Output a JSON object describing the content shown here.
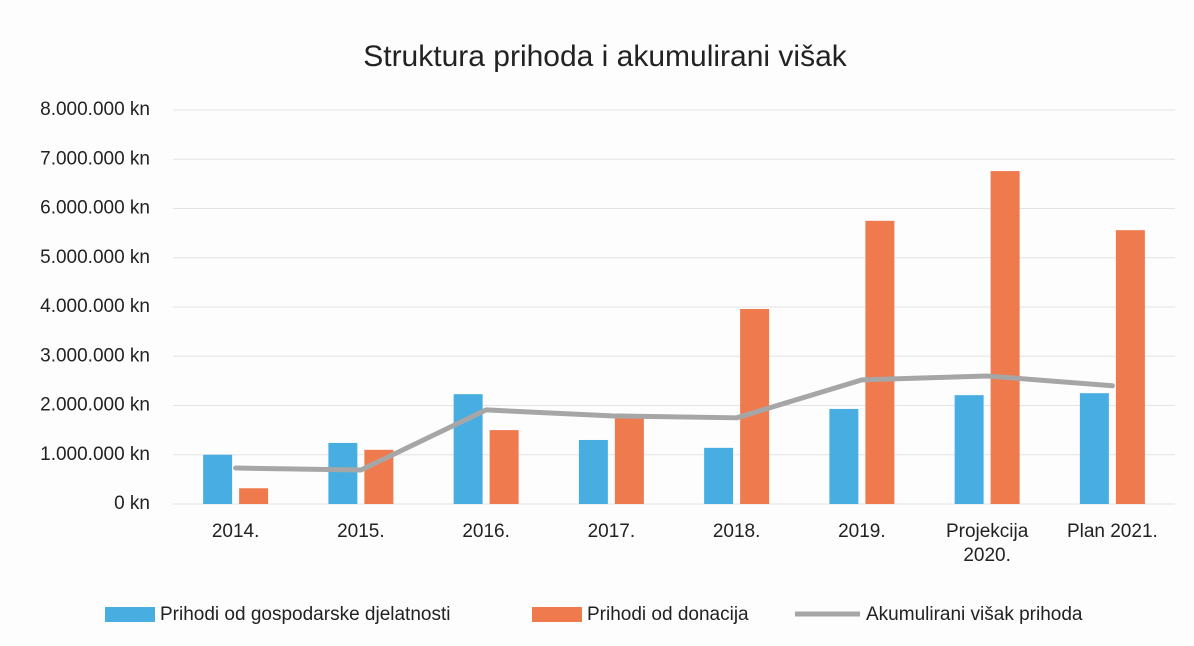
{
  "chart_data": {
    "type": "bar_line",
    "title": "Struktura prihoda i akumulirani višak",
    "categories": [
      "2014.",
      "2015.",
      "2016.",
      "2017.",
      "2018.",
      "2019.",
      "Projekcija 2020.",
      "Plan 2021."
    ],
    "series": [
      {
        "name": "Prihodi od gospodarske djelatnosti",
        "type": "bar",
        "color": "#48aee2",
        "values": [
          1000000,
          1240000,
          2230000,
          1300000,
          1140000,
          1930000,
          2210000,
          2250000
        ]
      },
      {
        "name": "Prihodi od donacija",
        "type": "bar",
        "color": "#ef7a4e",
        "values": [
          320000,
          1100000,
          1500000,
          1750000,
          3960000,
          5750000,
          6760000,
          5560000
        ]
      },
      {
        "name": "Akumulirani višak prihoda",
        "type": "line",
        "color": "#a6a6a6",
        "values": [
          730000,
          690000,
          1910000,
          1790000,
          1750000,
          2520000,
          2600000,
          2400000
        ]
      }
    ],
    "ylim": [
      0,
      8000000
    ],
    "yticks": [
      {
        "value": 0,
        "label": "0 kn"
      },
      {
        "value": 1000000,
        "label": "1.000.000 kn"
      },
      {
        "value": 2000000,
        "label": "2.000.000 kn"
      },
      {
        "value": 3000000,
        "label": "3.000.000 kn"
      },
      {
        "value": 4000000,
        "label": "4.000.000 kn"
      },
      {
        "value": 5000000,
        "label": "5.000.000 kn"
      },
      {
        "value": 6000000,
        "label": "6.000.000 kn"
      },
      {
        "value": 7000000,
        "label": "7.000.000 kn"
      },
      {
        "value": 8000000,
        "label": "8.000.000 kn"
      }
    ],
    "grid": true,
    "legend": "bottom"
  }
}
